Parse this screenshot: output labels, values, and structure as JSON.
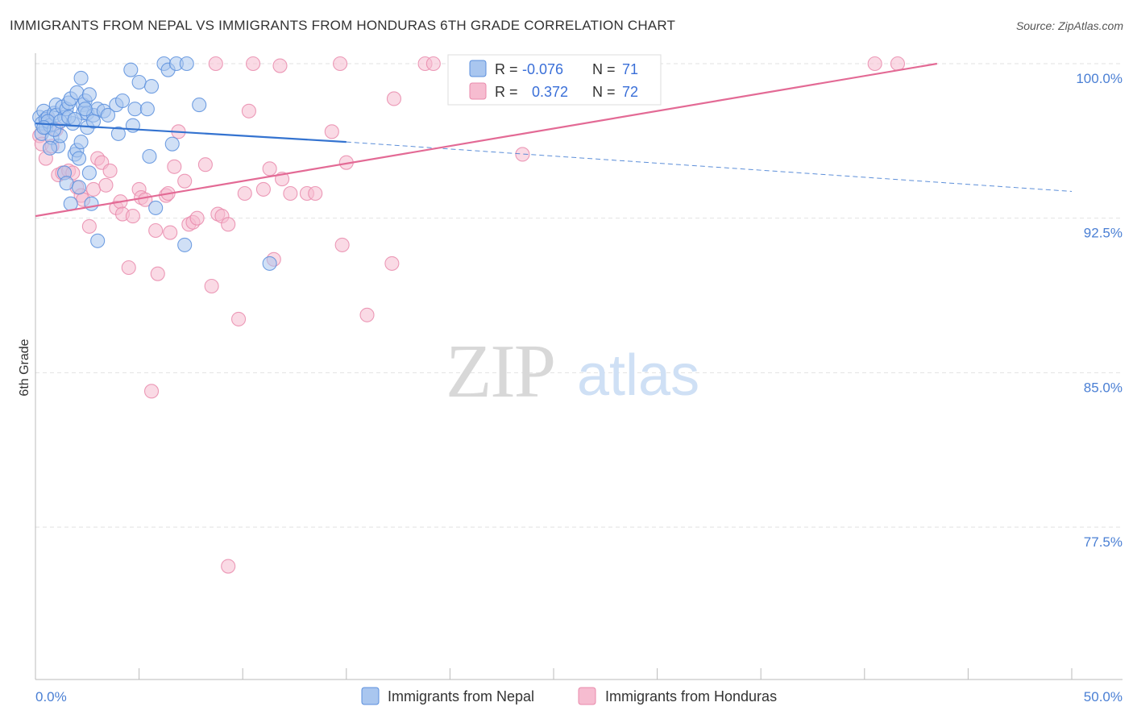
{
  "title": "IMMIGRANTS FROM NEPAL VS IMMIGRANTS FROM HONDURAS 6TH GRADE CORRELATION CHART",
  "source": "Source: ZipAtlas.com",
  "watermark": {
    "zip": "ZIP",
    "atlas": "atlas"
  },
  "colors": {
    "nepal_fill": "#a9c6ef",
    "nepal_stroke": "#5b8fdd",
    "nepal_line": "#3473d0",
    "honduras_fill": "#f6bcd0",
    "honduras_stroke": "#e98aab",
    "honduras_line": "#e36a95",
    "grid": "#e2e2e2",
    "tick_label": "#4a7fd4"
  },
  "legend": {
    "rows": [
      {
        "r_label": "R =",
        "r_value": "-0.076",
        "n_label": "N =",
        "n_value": "71"
      },
      {
        "r_label": "R =",
        "r_value": "0.372",
        "n_label": "N =",
        "n_value": "72"
      }
    ]
  },
  "chart_data": {
    "type": "scatter",
    "title": "IMMIGRANTS FROM NEPAL VS IMMIGRANTS FROM HONDURAS 6TH GRADE CORRELATION CHART",
    "xlabel": "",
    "ylabel": "6th Grade",
    "xlim": [
      0,
      50
    ],
    "ylim": [
      70.0,
      100.3
    ],
    "x_tick_labels": [
      "0.0%",
      "50.0%"
    ],
    "y_ticks": [
      100.0,
      92.5,
      85.0,
      77.5
    ],
    "y_tick_labels": [
      "100.0%",
      "92.5%",
      "85.0%",
      "77.5%"
    ],
    "grid": true,
    "series": [
      {
        "name": "Immigrants from Nepal",
        "r": -0.076,
        "n": 71,
        "trend": {
          "x0": 0.0,
          "y0": 97.1,
          "x1": 15.0,
          "y1": 96.2,
          "x_dash_end": 50.0,
          "y_dash_end": 93.8
        },
        "points": [
          [
            0.2,
            97.4
          ],
          [
            0.3,
            97.1
          ],
          [
            0.3,
            96.6
          ],
          [
            0.4,
            97.7
          ],
          [
            0.5,
            97.3
          ],
          [
            0.5,
            96.9
          ],
          [
            0.6,
            97.4
          ],
          [
            0.7,
            97.0
          ],
          [
            0.8,
            96.4
          ],
          [
            0.9,
            97.6
          ],
          [
            1.0,
            98.0
          ],
          [
            1.0,
            97.5
          ],
          [
            1.1,
            96.0
          ],
          [
            1.2,
            96.5
          ],
          [
            1.3,
            97.9
          ],
          [
            1.4,
            94.7
          ],
          [
            1.4,
            97.4
          ],
          [
            1.5,
            94.2
          ],
          [
            1.5,
            97.8
          ],
          [
            1.6,
            98.1
          ],
          [
            1.7,
            93.2
          ],
          [
            1.7,
            98.3
          ],
          [
            1.8,
            97.1
          ],
          [
            1.9,
            95.6
          ],
          [
            2.0,
            95.8
          ],
          [
            2.0,
            98.6
          ],
          [
            2.1,
            94.0
          ],
          [
            2.1,
            95.4
          ],
          [
            2.2,
            96.2
          ],
          [
            2.2,
            99.3
          ],
          [
            2.3,
            98.0
          ],
          [
            2.3,
            97.6
          ],
          [
            2.4,
            98.2
          ],
          [
            2.5,
            96.9
          ],
          [
            2.5,
            97.6
          ],
          [
            2.6,
            94.7
          ],
          [
            2.6,
            98.5
          ],
          [
            2.7,
            93.2
          ],
          [
            2.8,
            97.5
          ],
          [
            3.0,
            97.8
          ],
          [
            3.0,
            91.4
          ],
          [
            3.3,
            97.7
          ],
          [
            3.9,
            98.0
          ],
          [
            4.0,
            96.6
          ],
          [
            4.2,
            98.2
          ],
          [
            4.6,
            99.7
          ],
          [
            4.7,
            97.0
          ],
          [
            4.8,
            97.8
          ],
          [
            5.0,
            99.1
          ],
          [
            5.4,
            97.8
          ],
          [
            5.5,
            95.5
          ],
          [
            5.6,
            98.9
          ],
          [
            5.8,
            93.0
          ],
          [
            6.2,
            100.0
          ],
          [
            6.4,
            99.7
          ],
          [
            6.6,
            96.1
          ],
          [
            6.8,
            100.0
          ],
          [
            7.2,
            91.2
          ],
          [
            7.3,
            100.0
          ],
          [
            7.9,
            98.0
          ],
          [
            11.3,
            90.3
          ],
          [
            0.6,
            97.2
          ],
          [
            0.9,
            96.8
          ],
          [
            1.2,
            97.2
          ],
          [
            1.6,
            97.4
          ],
          [
            2.8,
            97.2
          ],
          [
            3.5,
            97.5
          ],
          [
            0.4,
            96.9
          ],
          [
            1.9,
            97.3
          ],
          [
            0.7,
            95.9
          ],
          [
            2.4,
            97.8
          ]
        ]
      },
      {
        "name": "Immigrants from Honduras",
        "r": 0.372,
        "n": 72,
        "trend": {
          "x0": 0.0,
          "y0": 92.6,
          "x1": 43.5,
          "y1": 100.0
        },
        "points": [
          [
            0.2,
            96.5
          ],
          [
            0.3,
            96.1
          ],
          [
            0.5,
            95.4
          ],
          [
            0.6,
            97.3
          ],
          [
            0.8,
            96.0
          ],
          [
            1.0,
            96.8
          ],
          [
            1.1,
            94.6
          ],
          [
            1.3,
            94.7
          ],
          [
            1.6,
            94.8
          ],
          [
            1.8,
            94.7
          ],
          [
            2.0,
            94.0
          ],
          [
            2.2,
            93.6
          ],
          [
            2.3,
            93.4
          ],
          [
            2.6,
            92.1
          ],
          [
            2.8,
            93.9
          ],
          [
            3.0,
            95.4
          ],
          [
            3.2,
            95.2
          ],
          [
            3.4,
            94.1
          ],
          [
            3.6,
            94.8
          ],
          [
            3.9,
            93.0
          ],
          [
            4.1,
            93.3
          ],
          [
            4.2,
            92.7
          ],
          [
            4.5,
            90.1
          ],
          [
            4.7,
            92.6
          ],
          [
            5.0,
            93.9
          ],
          [
            5.1,
            93.5
          ],
          [
            5.3,
            93.4
          ],
          [
            5.8,
            91.9
          ],
          [
            5.9,
            89.8
          ],
          [
            6.3,
            93.6
          ],
          [
            6.4,
            93.7
          ],
          [
            6.5,
            91.8
          ],
          [
            6.7,
            95.0
          ],
          [
            6.9,
            96.7
          ],
          [
            7.2,
            94.3
          ],
          [
            7.4,
            92.2
          ],
          [
            7.6,
            92.3
          ],
          [
            7.8,
            92.5
          ],
          [
            8.2,
            95.1
          ],
          [
            8.5,
            89.2
          ],
          [
            8.8,
            92.7
          ],
          [
            9.0,
            92.6
          ],
          [
            9.3,
            92.2
          ],
          [
            9.8,
            87.6
          ],
          [
            10.1,
            93.7
          ],
          [
            10.3,
            97.7
          ],
          [
            11.0,
            93.9
          ],
          [
            11.3,
            94.9
          ],
          [
            11.5,
            90.5
          ],
          [
            11.9,
            94.4
          ],
          [
            12.3,
            93.7
          ],
          [
            13.1,
            93.7
          ],
          [
            13.5,
            93.7
          ],
          [
            14.3,
            96.7
          ],
          [
            14.8,
            91.2
          ],
          [
            15.0,
            95.2
          ],
          [
            16.0,
            87.8
          ],
          [
            17.2,
            90.3
          ],
          [
            17.3,
            98.3
          ],
          [
            18.8,
            100.0
          ],
          [
            23.5,
            95.6
          ],
          [
            5.6,
            84.1
          ],
          [
            9.3,
            75.6
          ],
          [
            8.7,
            100.0
          ],
          [
            10.5,
            100.0
          ],
          [
            11.8,
            99.9
          ],
          [
            14.7,
            100.0
          ],
          [
            19.2,
            100.0
          ],
          [
            23.2,
            100.0
          ],
          [
            28.3,
            100.0
          ],
          [
            40.5,
            100.0
          ],
          [
            41.6,
            100.0
          ]
        ]
      }
    ]
  }
}
